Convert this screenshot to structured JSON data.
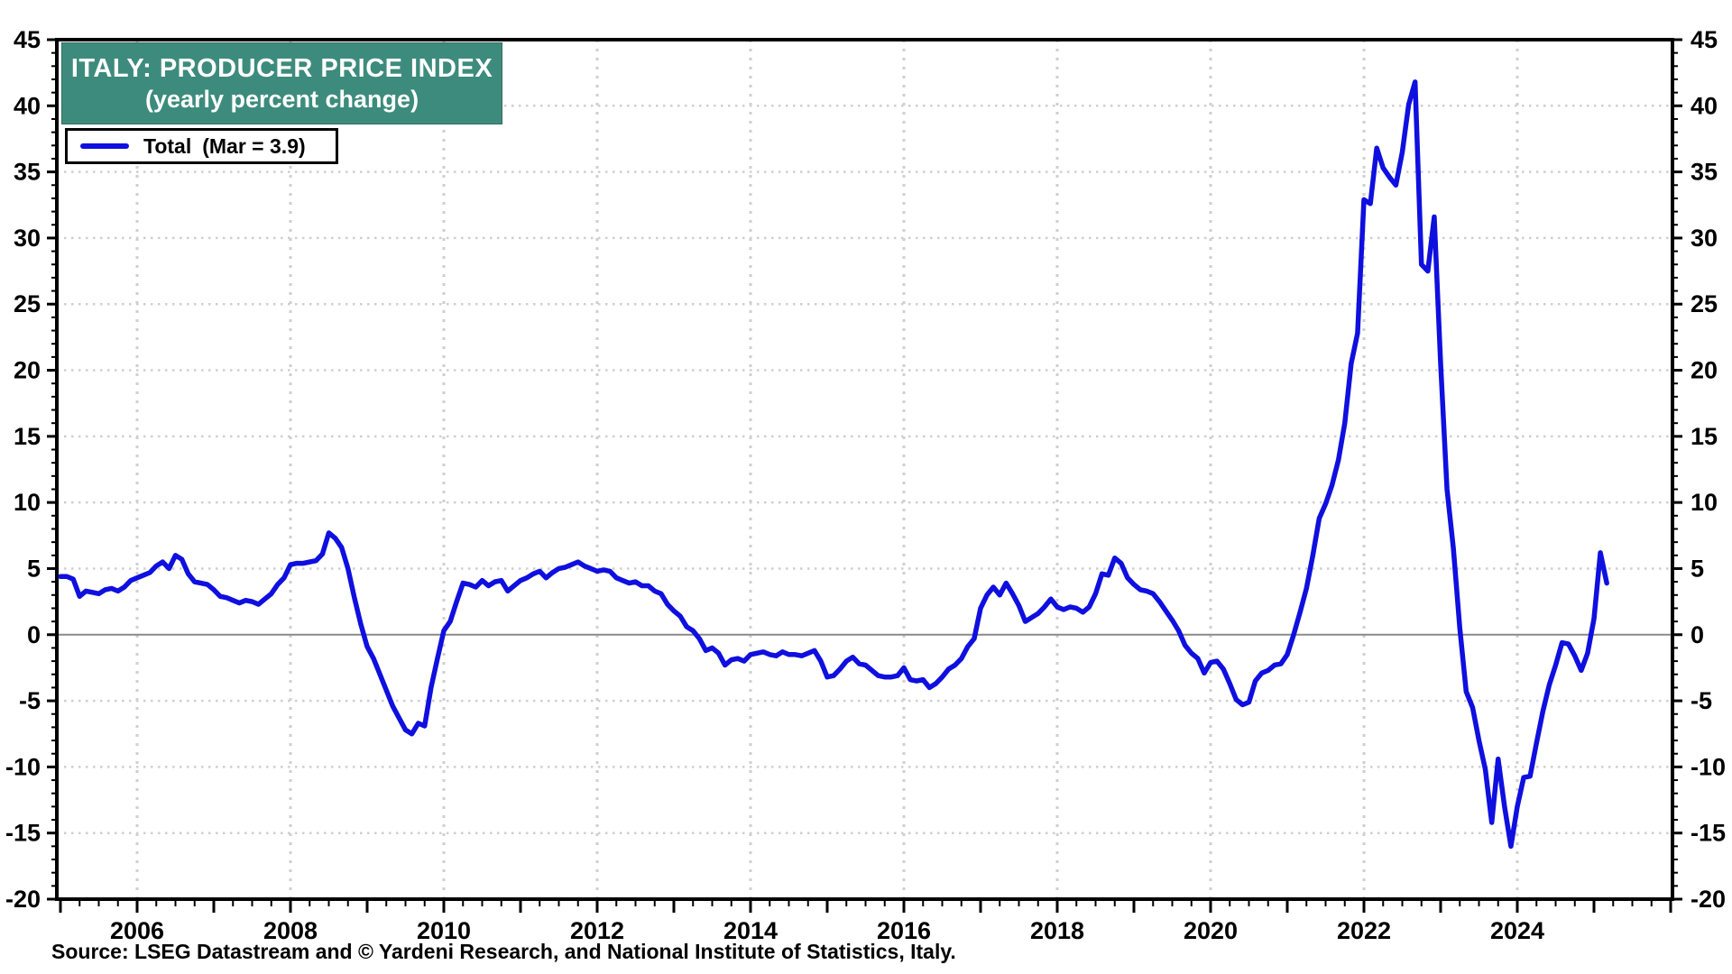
{
  "header": {
    "title": "ITALY: PRODUCER PRICE INDEX",
    "subtitle": "(yearly percent change)"
  },
  "legend": {
    "series_label": "Total",
    "value_note": "(Mar = 3.9)"
  },
  "source": "Source: LSEG Datastream and © Yardeni Research, and National Institute of Statistics, Italy.",
  "colors": {
    "line": "#0f0fdf",
    "title_bg": "#3d8b7c",
    "grid": "#cfcfcf",
    "zero_line": "#8a8a8a",
    "frame": "#000000"
  },
  "chart_data": {
    "type": "line",
    "title": "ITALY: PRODUCER PRICE INDEX",
    "subtitle": "(yearly percent change)",
    "ylabel": "yearly percent change",
    "ylim": [
      -20,
      45
    ],
    "y_ticks": [
      -20,
      -15,
      -10,
      -5,
      0,
      5,
      10,
      15,
      20,
      25,
      30,
      35,
      40,
      45
    ],
    "x_tick_labels": [
      "2006",
      "2008",
      "2010",
      "2012",
      "2014",
      "2016",
      "2018",
      "2020",
      "2022",
      "2024"
    ],
    "x_gridline_years": [
      2006,
      2008,
      2010,
      2012,
      2014,
      2016,
      2018,
      2020,
      2022,
      2024
    ],
    "x_range": [
      "2005-01",
      "2026-01"
    ],
    "grid": "dotted",
    "legend_position": "top-left",
    "last_point": {
      "label": "Mar",
      "value": 3.9
    },
    "series": [
      {
        "name": "Total",
        "start": "2005-01",
        "frequency": "monthly",
        "values": [
          4.4,
          4.4,
          4.2,
          2.9,
          3.3,
          3.2,
          3.1,
          3.4,
          3.5,
          3.3,
          3.6,
          4.1,
          4.3,
          4.5,
          4.7,
          5.2,
          5.5,
          5.0,
          6.0,
          5.7,
          4.6,
          4.0,
          3.9,
          3.8,
          3.4,
          2.9,
          2.8,
          2.6,
          2.4,
          2.6,
          2.5,
          2.3,
          2.7,
          3.1,
          3.8,
          4.3,
          5.3,
          5.4,
          5.4,
          5.5,
          5.6,
          6.1,
          7.7,
          7.3,
          6.6,
          5.0,
          2.8,
          0.8,
          -0.9,
          -1.8,
          -3.0,
          -4.2,
          -5.4,
          -6.3,
          -7.2,
          -7.5,
          -6.7,
          -6.9,
          -4.0,
          -1.8,
          0.3,
          1.0,
          2.5,
          3.9,
          3.8,
          3.6,
          4.1,
          3.7,
          4.0,
          4.1,
          3.3,
          3.7,
          4.1,
          4.3,
          4.6,
          4.8,
          4.3,
          4.7,
          5.0,
          5.1,
          5.3,
          5.5,
          5.2,
          5.0,
          4.8,
          4.9,
          4.8,
          4.3,
          4.1,
          3.9,
          4.0,
          3.7,
          3.7,
          3.3,
          3.1,
          2.3,
          1.8,
          1.4,
          0.6,
          0.3,
          -0.3,
          -1.2,
          -1.0,
          -1.4,
          -2.3,
          -1.9,
          -1.8,
          -2.0,
          -1.5,
          -1.4,
          -1.3,
          -1.5,
          -1.6,
          -1.3,
          -1.5,
          -1.5,
          -1.6,
          -1.4,
          -1.2,
          -2.0,
          -3.2,
          -3.1,
          -2.6,
          -2.0,
          -1.7,
          -2.2,
          -2.3,
          -2.7,
          -3.1,
          -3.2,
          -3.2,
          -3.1,
          -2.5,
          -3.4,
          -3.5,
          -3.4,
          -4.0,
          -3.7,
          -3.2,
          -2.6,
          -2.3,
          -1.8,
          -0.9,
          -0.3,
          2.0,
          3.0,
          3.6,
          3.0,
          3.9,
          3.1,
          2.2,
          1.0,
          1.3,
          1.6,
          2.1,
          2.7,
          2.1,
          1.9,
          2.1,
          2.0,
          1.7,
          2.1,
          3.1,
          4.6,
          4.5,
          5.8,
          5.4,
          4.3,
          3.8,
          3.4,
          3.3,
          3.1,
          2.5,
          1.8,
          1.1,
          0.3,
          -0.8,
          -1.4,
          -1.8,
          -2.9,
          -2.1,
          -2.0,
          -2.6,
          -3.7,
          -4.9,
          -5.3,
          -5.1,
          -3.5,
          -2.9,
          -2.7,
          -2.3,
          -2.2,
          -1.5,
          0.0,
          1.7,
          3.5,
          6.0,
          8.8,
          9.9,
          11.3,
          13.2,
          16.0,
          20.5,
          22.8,
          32.9,
          32.6,
          36.8,
          35.3,
          34.6,
          34.0,
          36.5,
          40.1,
          41.8,
          28.0,
          27.5,
          31.6,
          20.5,
          11.0,
          6.5,
          0.5,
          -4.3,
          -5.5,
          -8.0,
          -10.2,
          -14.2,
          -9.4,
          -13.0,
          -16.0,
          -13.0,
          -10.8,
          -10.7,
          -8.2,
          -5.8,
          -3.8,
          -2.3,
          -0.6,
          -0.7,
          -1.6,
          -2.7,
          -1.4,
          1.2,
          6.2,
          3.9
        ]
      }
    ]
  }
}
